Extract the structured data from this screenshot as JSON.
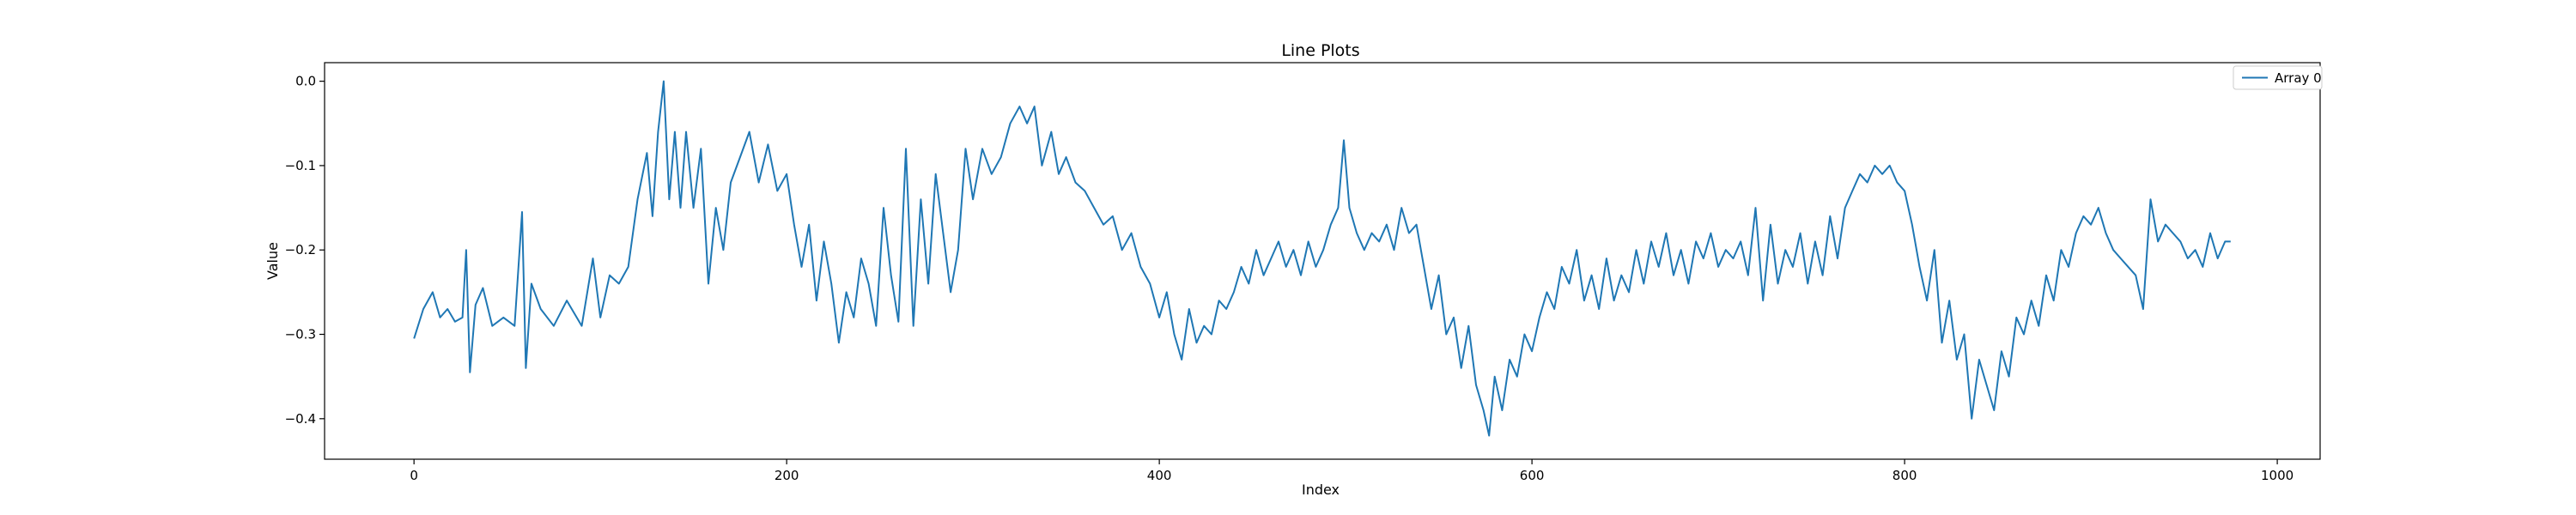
{
  "chart_data": {
    "type": "line",
    "title": "Line Plots",
    "xlabel": "Index",
    "ylabel": "Value",
    "xlim": [
      -48,
      1023
    ],
    "ylim": [
      -0.448,
      0.022
    ],
    "xticks": [
      0,
      200,
      400,
      600,
      800,
      1000
    ],
    "yticks": [
      0.0,
      -0.1,
      -0.2,
      -0.3,
      -0.4
    ],
    "ytick_labels": [
      "0.0",
      "−0.1",
      "−0.2",
      "−0.3",
      "−0.4"
    ],
    "grid": false,
    "legend_position": "top-right",
    "colors": {
      "series": "#1f77b4",
      "axes": "#000000",
      "legend_border": "#cccccc"
    },
    "series": [
      {
        "name": "Array 0",
        "points": [
          [
            0,
            -0.305
          ],
          [
            5,
            -0.27
          ],
          [
            10,
            -0.25
          ],
          [
            14,
            -0.28
          ],
          [
            18,
            -0.27
          ],
          [
            22,
            -0.285
          ],
          [
            26,
            -0.28
          ],
          [
            28,
            -0.2
          ],
          [
            30,
            -0.345
          ],
          [
            33,
            -0.265
          ],
          [
            37,
            -0.245
          ],
          [
            42,
            -0.29
          ],
          [
            48,
            -0.28
          ],
          [
            54,
            -0.29
          ],
          [
            58,
            -0.155
          ],
          [
            60,
            -0.34
          ],
          [
            63,
            -0.24
          ],
          [
            68,
            -0.27
          ],
          [
            75,
            -0.29
          ],
          [
            82,
            -0.26
          ],
          [
            90,
            -0.29
          ],
          [
            96,
            -0.21
          ],
          [
            100,
            -0.28
          ],
          [
            105,
            -0.23
          ],
          [
            110,
            -0.24
          ],
          [
            115,
            -0.22
          ],
          [
            120,
            -0.14
          ],
          [
            125,
            -0.085
          ],
          [
            128,
            -0.16
          ],
          [
            131,
            -0.06
          ],
          [
            134,
            0.0
          ],
          [
            137,
            -0.14
          ],
          [
            140,
            -0.06
          ],
          [
            143,
            -0.15
          ],
          [
            146,
            -0.06
          ],
          [
            150,
            -0.15
          ],
          [
            154,
            -0.08
          ],
          [
            158,
            -0.24
          ],
          [
            162,
            -0.15
          ],
          [
            166,
            -0.2
          ],
          [
            170,
            -0.12
          ],
          [
            175,
            -0.09
          ],
          [
            180,
            -0.06
          ],
          [
            185,
            -0.12
          ],
          [
            190,
            -0.075
          ],
          [
            195,
            -0.13
          ],
          [
            200,
            -0.11
          ],
          [
            204,
            -0.17
          ],
          [
            208,
            -0.22
          ],
          [
            212,
            -0.17
          ],
          [
            216,
            -0.26
          ],
          [
            220,
            -0.19
          ],
          [
            224,
            -0.24
          ],
          [
            228,
            -0.31
          ],
          [
            232,
            -0.25
          ],
          [
            236,
            -0.28
          ],
          [
            240,
            -0.21
          ],
          [
            244,
            -0.24
          ],
          [
            248,
            -0.29
          ],
          [
            252,
            -0.15
          ],
          [
            256,
            -0.23
          ],
          [
            260,
            -0.285
          ],
          [
            264,
            -0.08
          ],
          [
            268,
            -0.29
          ],
          [
            272,
            -0.14
          ],
          [
            276,
            -0.24
          ],
          [
            280,
            -0.11
          ],
          [
            284,
            -0.18
          ],
          [
            288,
            -0.25
          ],
          [
            292,
            -0.2
          ],
          [
            296,
            -0.08
          ],
          [
            300,
            -0.14
          ],
          [
            305,
            -0.08
          ],
          [
            310,
            -0.11
          ],
          [
            315,
            -0.09
          ],
          [
            320,
            -0.05
          ],
          [
            325,
            -0.03
          ],
          [
            329,
            -0.05
          ],
          [
            333,
            -0.03
          ],
          [
            337,
            -0.1
          ],
          [
            342,
            -0.06
          ],
          [
            346,
            -0.11
          ],
          [
            350,
            -0.09
          ],
          [
            355,
            -0.12
          ],
          [
            360,
            -0.13
          ],
          [
            365,
            -0.15
          ],
          [
            370,
            -0.17
          ],
          [
            375,
            -0.16
          ],
          [
            380,
            -0.2
          ],
          [
            385,
            -0.18
          ],
          [
            390,
            -0.22
          ],
          [
            395,
            -0.24
          ],
          [
            400,
            -0.28
          ],
          [
            404,
            -0.25
          ],
          [
            408,
            -0.3
          ],
          [
            412,
            -0.33
          ],
          [
            416,
            -0.27
          ],
          [
            420,
            -0.31
          ],
          [
            424,
            -0.29
          ],
          [
            428,
            -0.3
          ],
          [
            432,
            -0.26
          ],
          [
            436,
            -0.27
          ],
          [
            440,
            -0.25
          ],
          [
            444,
            -0.22
          ],
          [
            448,
            -0.24
          ],
          [
            452,
            -0.2
          ],
          [
            456,
            -0.23
          ],
          [
            460,
            -0.21
          ],
          [
            464,
            -0.19
          ],
          [
            468,
            -0.22
          ],
          [
            472,
            -0.2
          ],
          [
            476,
            -0.23
          ],
          [
            480,
            -0.19
          ],
          [
            484,
            -0.22
          ],
          [
            488,
            -0.2
          ],
          [
            492,
            -0.17
          ],
          [
            496,
            -0.15
          ],
          [
            499,
            -0.07
          ],
          [
            502,
            -0.15
          ],
          [
            506,
            -0.18
          ],
          [
            510,
            -0.2
          ],
          [
            514,
            -0.18
          ],
          [
            518,
            -0.19
          ],
          [
            522,
            -0.17
          ],
          [
            526,
            -0.2
          ],
          [
            530,
            -0.15
          ],
          [
            534,
            -0.18
          ],
          [
            538,
            -0.17
          ],
          [
            542,
            -0.22
          ],
          [
            546,
            -0.27
          ],
          [
            550,
            -0.23
          ],
          [
            554,
            -0.3
          ],
          [
            558,
            -0.28
          ],
          [
            562,
            -0.34
          ],
          [
            566,
            -0.29
          ],
          [
            570,
            -0.36
          ],
          [
            574,
            -0.39
          ],
          [
            577,
            -0.42
          ],
          [
            580,
            -0.35
          ],
          [
            584,
            -0.39
          ],
          [
            588,
            -0.33
          ],
          [
            592,
            -0.35
          ],
          [
            596,
            -0.3
          ],
          [
            600,
            -0.32
          ],
          [
            604,
            -0.28
          ],
          [
            608,
            -0.25
          ],
          [
            612,
            -0.27
          ],
          [
            616,
            -0.22
          ],
          [
            620,
            -0.24
          ],
          [
            624,
            -0.2
          ],
          [
            628,
            -0.26
          ],
          [
            632,
            -0.23
          ],
          [
            636,
            -0.27
          ],
          [
            640,
            -0.21
          ],
          [
            644,
            -0.26
          ],
          [
            648,
            -0.23
          ],
          [
            652,
            -0.25
          ],
          [
            656,
            -0.2
          ],
          [
            660,
            -0.24
          ],
          [
            664,
            -0.19
          ],
          [
            668,
            -0.22
          ],
          [
            672,
            -0.18
          ],
          [
            676,
            -0.23
          ],
          [
            680,
            -0.2
          ],
          [
            684,
            -0.24
          ],
          [
            688,
            -0.19
          ],
          [
            692,
            -0.21
          ],
          [
            696,
            -0.18
          ],
          [
            700,
            -0.22
          ],
          [
            704,
            -0.2
          ],
          [
            708,
            -0.21
          ],
          [
            712,
            -0.19
          ],
          [
            716,
            -0.23
          ],
          [
            720,
            -0.15
          ],
          [
            724,
            -0.26
          ],
          [
            728,
            -0.17
          ],
          [
            732,
            -0.24
          ],
          [
            736,
            -0.2
          ],
          [
            740,
            -0.22
          ],
          [
            744,
            -0.18
          ],
          [
            748,
            -0.24
          ],
          [
            752,
            -0.19
          ],
          [
            756,
            -0.23
          ],
          [
            760,
            -0.16
          ],
          [
            764,
            -0.21
          ],
          [
            768,
            -0.15
          ],
          [
            772,
            -0.13
          ],
          [
            776,
            -0.11
          ],
          [
            780,
            -0.12
          ],
          [
            784,
            -0.1
          ],
          [
            788,
            -0.11
          ],
          [
            792,
            -0.1
          ],
          [
            796,
            -0.12
          ],
          [
            800,
            -0.13
          ],
          [
            804,
            -0.17
          ],
          [
            808,
            -0.22
          ],
          [
            812,
            -0.26
          ],
          [
            816,
            -0.2
          ],
          [
            820,
            -0.31
          ],
          [
            824,
            -0.26
          ],
          [
            828,
            -0.33
          ],
          [
            832,
            -0.3
          ],
          [
            836,
            -0.4
          ],
          [
            840,
            -0.33
          ],
          [
            844,
            -0.36
          ],
          [
            848,
            -0.39
          ],
          [
            852,
            -0.32
          ],
          [
            856,
            -0.35
          ],
          [
            860,
            -0.28
          ],
          [
            864,
            -0.3
          ],
          [
            868,
            -0.26
          ],
          [
            872,
            -0.29
          ],
          [
            876,
            -0.23
          ],
          [
            880,
            -0.26
          ],
          [
            884,
            -0.2
          ],
          [
            888,
            -0.22
          ],
          [
            892,
            -0.18
          ],
          [
            896,
            -0.16
          ],
          [
            900,
            -0.17
          ],
          [
            904,
            -0.15
          ],
          [
            908,
            -0.18
          ],
          [
            912,
            -0.2
          ],
          [
            916,
            -0.21
          ],
          [
            920,
            -0.22
          ],
          [
            924,
            -0.23
          ],
          [
            928,
            -0.27
          ],
          [
            932,
            -0.14
          ],
          [
            936,
            -0.19
          ],
          [
            940,
            -0.17
          ],
          [
            944,
            -0.18
          ],
          [
            948,
            -0.19
          ],
          [
            952,
            -0.21
          ],
          [
            956,
            -0.2
          ],
          [
            960,
            -0.22
          ],
          [
            964,
            -0.18
          ],
          [
            968,
            -0.21
          ],
          [
            972,
            -0.19
          ],
          [
            975,
            -0.19
          ]
        ]
      }
    ]
  }
}
